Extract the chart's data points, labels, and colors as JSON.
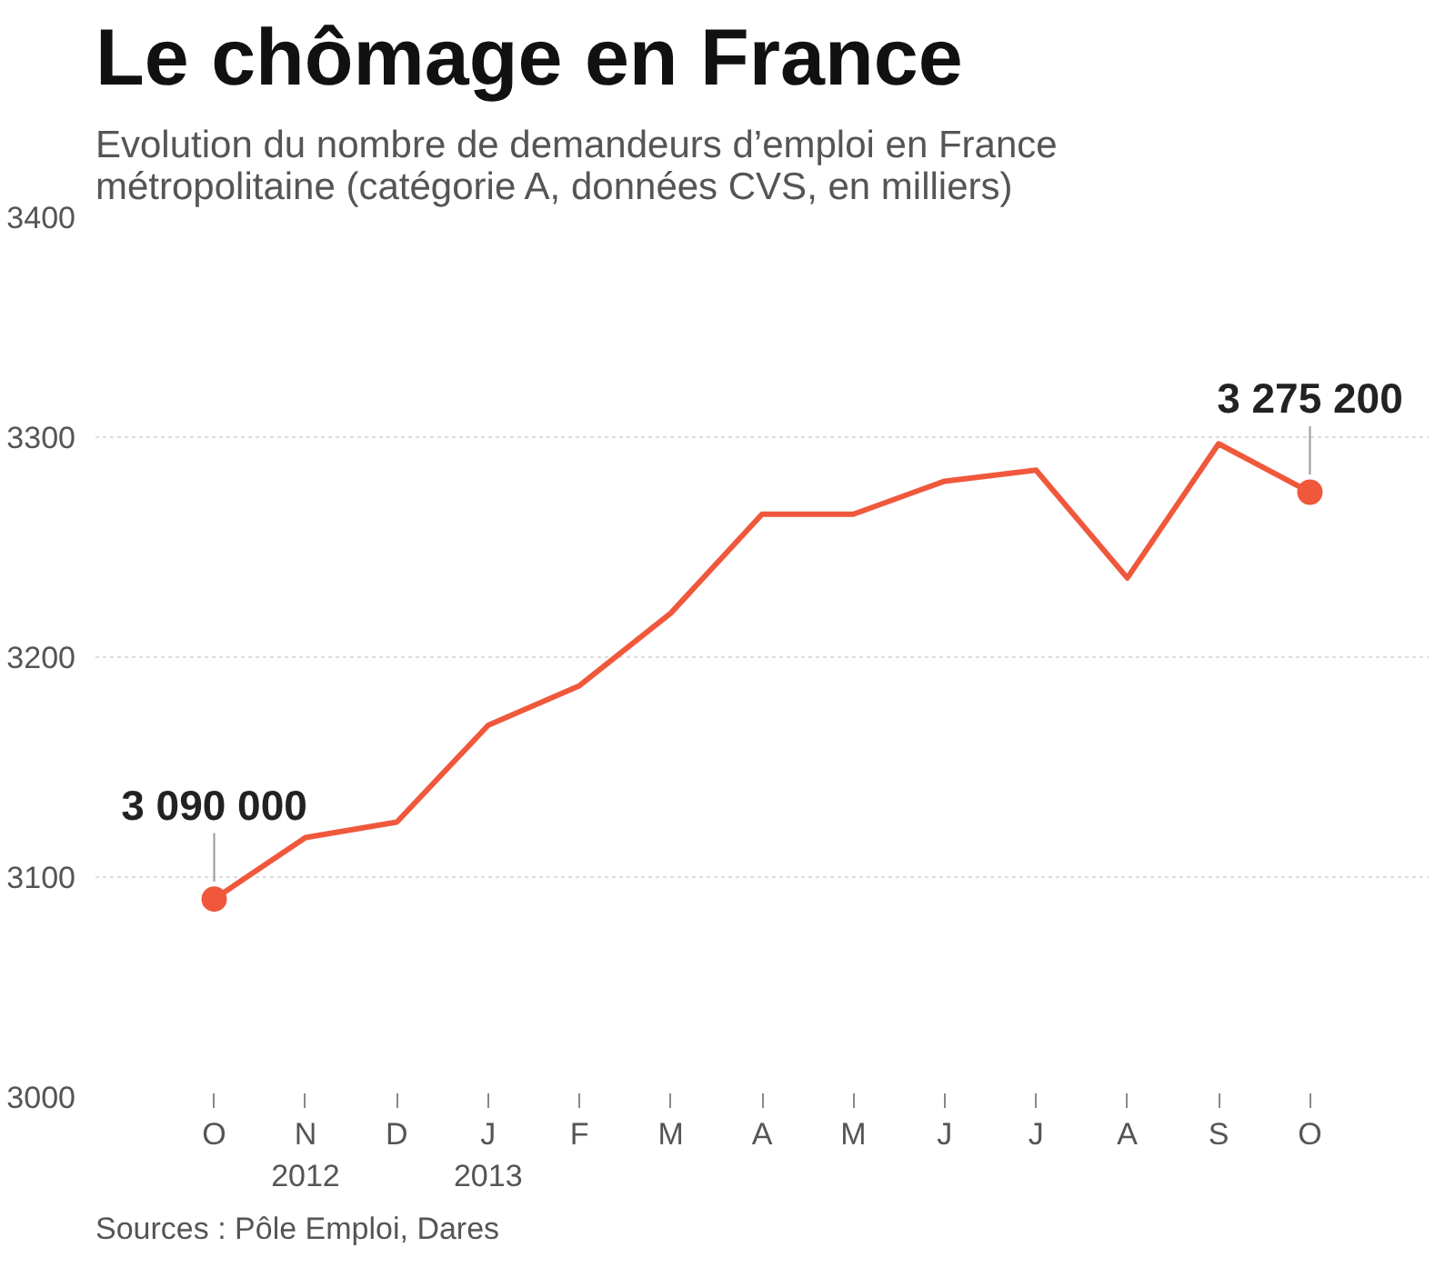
{
  "chart_data": {
    "type": "line",
    "title": "Le chômage en France",
    "subtitle": "Evolution du nombre de demandeurs d’emploi en France\nmétropolitaine (catégorie A, données CVS, en milliers)",
    "categories": [
      "O",
      "N\n2012",
      "D",
      "J\n2013",
      "F",
      "M",
      "A",
      "M",
      "J",
      "J",
      "A",
      "S",
      "O"
    ],
    "series": [
      {
        "color": "#f0583c",
        "values": [
          3090,
          3118,
          3125,
          3169,
          3187,
          3220,
          3265,
          3265,
          3280,
          3285,
          3236,
          3297,
          3275
        ]
      },
      {
        "type": "scatter",
        "color": "#f0583c",
        "marker": "circle",
        "values": [
          3090,
          null,
          null,
          null,
          null,
          null,
          null,
          null,
          null,
          null,
          null,
          null,
          3275
        ]
      }
    ],
    "ylim": [
      3000,
      3400
    ],
    "yticks": [
      3000,
      3100,
      3200,
      3300,
      3400
    ],
    "grid": "y",
    "annotations": [
      {
        "text": "3 090 000",
        "y": 3090
      },
      {
        "text": "3 275 200",
        "y": 3275
      },
      "Sources : Pôle Emploi, Dares"
    ]
  }
}
